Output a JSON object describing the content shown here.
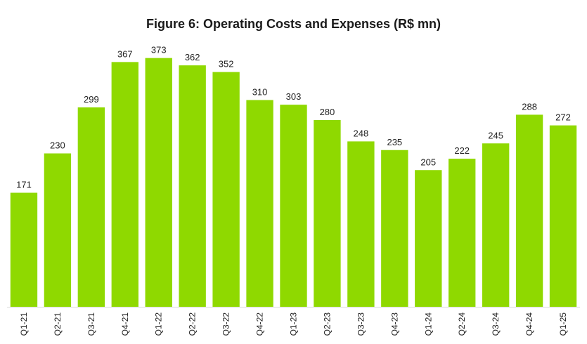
{
  "colors": {
    "bar": "#8fd900",
    "axis": "#d9d9d9",
    "text": "#222222"
  },
  "chart_data": {
    "type": "bar",
    "title": "Figure 6: Operating Costs and Expenses (R$ mn)",
    "xlabel": "",
    "ylabel": "",
    "grid": false,
    "ylim": [
      0,
      390
    ],
    "categories": [
      "Q1-21",
      "Q2-21",
      "Q3-21",
      "Q4-21",
      "Q1-22",
      "Q2-22",
      "Q3-22",
      "Q4-22",
      "Q1-23",
      "Q2-23",
      "Q3-23",
      "Q4-23",
      "Q1-24",
      "Q2-24",
      "Q3-24",
      "Q4-24",
      "Q1-25"
    ],
    "values": [
      171,
      230,
      299,
      367,
      373,
      362,
      352,
      310,
      303,
      280,
      248,
      235,
      205,
      222,
      245,
      288,
      272
    ]
  }
}
